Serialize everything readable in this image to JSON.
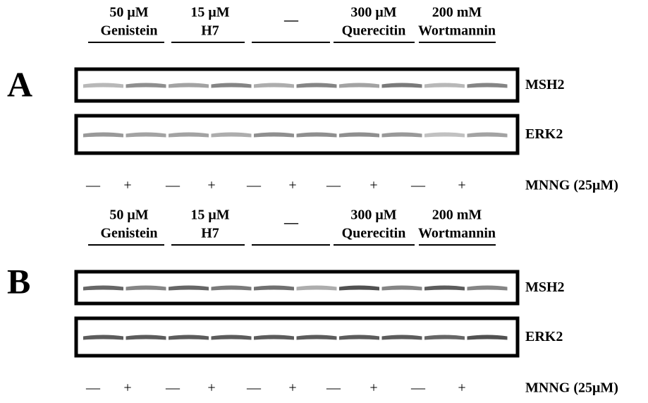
{
  "panels": [
    {
      "label": "A",
      "groups": [
        {
          "line1": "50 μM",
          "line2": "Genistein"
        },
        {
          "line1": "15 μM",
          "line2": "H7"
        },
        {
          "line1": "—"
        },
        {
          "line1": "300 μM",
          "line2": "Querecitin"
        },
        {
          "line1": "200 mM",
          "line2": "Wortmannin"
        }
      ],
      "blots": [
        "MSH2",
        "ERK2"
      ],
      "signs": [
        "—",
        "+",
        "—",
        "+",
        "—",
        "+",
        "—",
        "+",
        "—",
        "+"
      ],
      "treatment": "MNNG (25μM)"
    },
    {
      "label": "B",
      "groups": [
        {
          "line1": "50 μM",
          "line2": "Genistein"
        },
        {
          "line1": "15 μM",
          "line2": "H7"
        },
        {
          "line1": "—"
        },
        {
          "line1": "300 μM",
          "line2": "Querecitin"
        },
        {
          "line1": "200 mM",
          "line2": "Wortmannin"
        }
      ],
      "blots": [
        "MSH2",
        "ERK2"
      ],
      "signs": [
        "—",
        "+",
        "—",
        "+",
        "—",
        "+",
        "—",
        "+",
        "—",
        "+"
      ],
      "treatment": "MNNG (25μM)"
    }
  ]
}
